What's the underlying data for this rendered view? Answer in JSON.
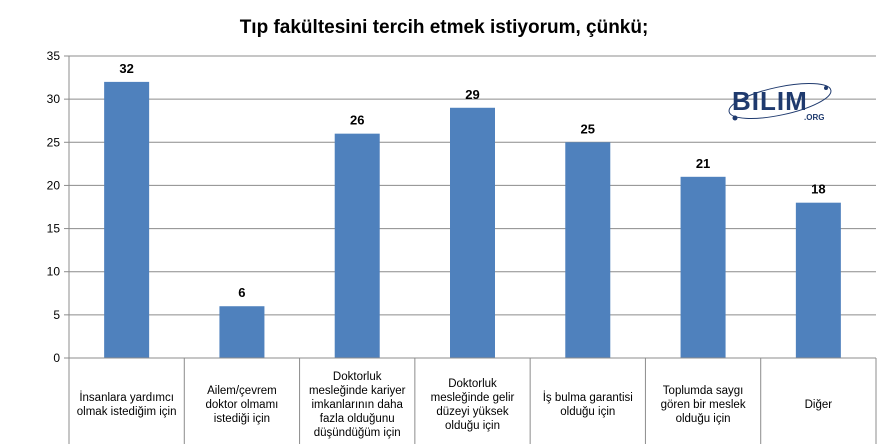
{
  "chart_data": {
    "type": "bar",
    "title": "Tıp fakültesini tercih etmek istiyorum, çünkü;",
    "categories": [
      [
        "İnsanlara yardımcı",
        "olmak istediğim  için"
      ],
      [
        "Ailem/çevrem",
        "doktor olmamı",
        "istediği için"
      ],
      [
        "Doktorluk",
        "mesleğinde kariyer",
        "imkanlarının daha",
        "fazla olduğunu",
        "düşündüğüm için"
      ],
      [
        "Doktorluk",
        "mesleğinde gelir",
        "düzeyi yüksek",
        "olduğu için"
      ],
      [
        "İş bulma garantisi",
        "olduğu için"
      ],
      [
        "Toplumda saygı",
        "gören bir meslek",
        "olduğu için"
      ],
      [
        "Diğer"
      ]
    ],
    "values": [
      32,
      6,
      26,
      29,
      25,
      21,
      18
    ],
    "ylim": [
      0,
      35
    ],
    "yticks": [
      0,
      5,
      10,
      15,
      20,
      25,
      30,
      35
    ],
    "grid": true,
    "bar_color": "#4f81bd",
    "legend": "none"
  },
  "logo": {
    "text": "BILIM",
    "sub": ".ORG",
    "color": "#1f3a6e"
  }
}
